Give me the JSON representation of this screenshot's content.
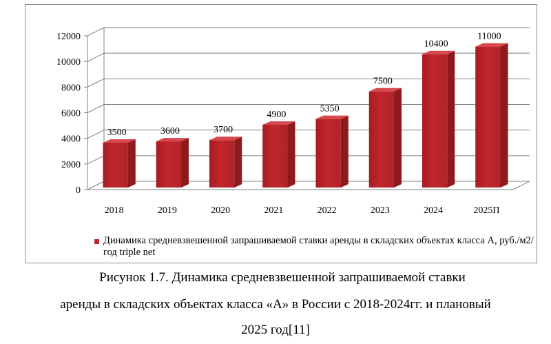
{
  "chart_data": {
    "type": "bar",
    "categories": [
      "2018",
      "2019",
      "2020",
      "2021",
      "2022",
      "2023",
      "2024",
      "2025П"
    ],
    "series": [
      {
        "name": "Динамика средневзвешенной запрашиваемой ставки аренды в складских объектах класса А, руб./м2/год triple net",
        "values": [
          3500,
          3600,
          3700,
          4900,
          5350,
          7500,
          10400,
          11000
        ]
      }
    ],
    "data_labels": [
      "3500",
      "3600",
      "3700",
      "4900",
      "5350",
      "7500",
      "10400",
      "11000"
    ],
    "y_ticks": [
      "0",
      "2000",
      "4000",
      "6000",
      "8000",
      "10000",
      "12000"
    ],
    "ylim": [
      0,
      12000
    ],
    "grid": true,
    "legend_position": "bottom",
    "bar_color": "#c0272d",
    "style": "3d"
  },
  "legend": {
    "label": "Динамика средневзвешенной запрашиваемой ставки аренды в складских объектах класса А, руб./м2/год triple net"
  },
  "caption": {
    "line1": "Рисунок  1.7. Динамика средневзвешенной запрашиваемой ставки",
    "line2": "аренды в складских объектах класса «А» в России с 2018-2024гг. и плановый",
    "line3": "2025 год[11]"
  }
}
